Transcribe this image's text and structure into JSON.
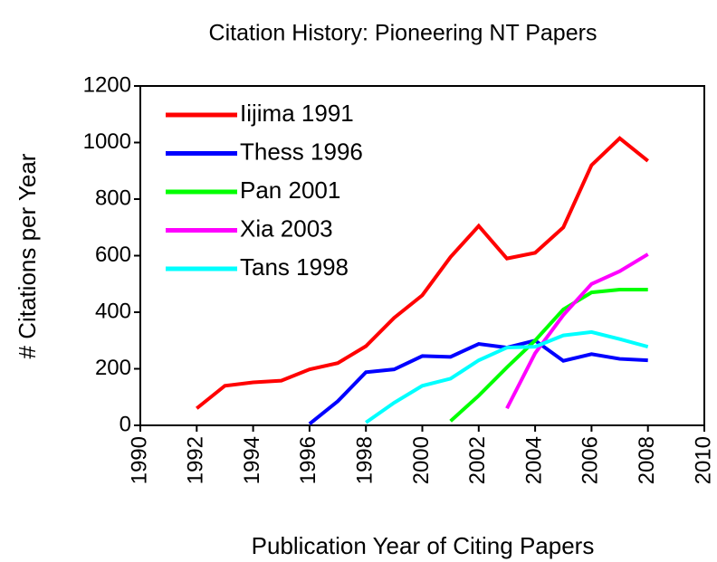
{
  "chart_data": {
    "type": "line",
    "title": "Citation History: Pioneering NT Papers",
    "x_label": "Publication Year of Citing Papers",
    "y_label": "# Citations per Year",
    "x": [
      1992,
      1993,
      1994,
      1995,
      1996,
      1997,
      1998,
      1999,
      2000,
      2001,
      2002,
      2003,
      2004,
      2005,
      2006,
      2007,
      2008
    ],
    "series": [
      {
        "name": "Iijima 1991",
        "color": "#ff0000",
        "values": [
          60,
          140,
          152,
          158,
          198,
          220,
          280,
          380,
          460,
          595,
          705,
          590,
          610,
          700,
          920,
          1015,
          935
        ]
      },
      {
        "name": "Thess 1996",
        "color": "#0000ff",
        "values": [
          null,
          null,
          null,
          null,
          5,
          85,
          188,
          198,
          245,
          242,
          288,
          275,
          300,
          228,
          252,
          235,
          230
        ]
      },
      {
        "name": "Pan 2001",
        "color": "#00ff00",
        "values": [
          null,
          null,
          null,
          null,
          null,
          null,
          null,
          null,
          null,
          15,
          105,
          205,
          300,
          410,
          470,
          480,
          480
        ]
      },
      {
        "name": "Xia 2003",
        "color": "#ff00ff",
        "values": [
          null,
          null,
          null,
          null,
          null,
          null,
          null,
          null,
          null,
          null,
          null,
          60,
          255,
          390,
          500,
          545,
          605
        ]
      },
      {
        "name": "Tans 1998",
        "color": "#00ffff",
        "values": [
          null,
          null,
          null,
          null,
          null,
          null,
          10,
          80,
          140,
          165,
          230,
          275,
          278,
          318,
          330,
          305,
          278
        ]
      }
    ],
    "xlim": [
      1990,
      2010
    ],
    "xticks": [
      1990,
      1992,
      1994,
      1996,
      1998,
      2000,
      2002,
      2004,
      2006,
      2008,
      2010
    ],
    "ylim": [
      0,
      1200
    ],
    "yticks": [
      0,
      200,
      400,
      600,
      800,
      1000,
      1200
    ],
    "legend": "upper left"
  }
}
